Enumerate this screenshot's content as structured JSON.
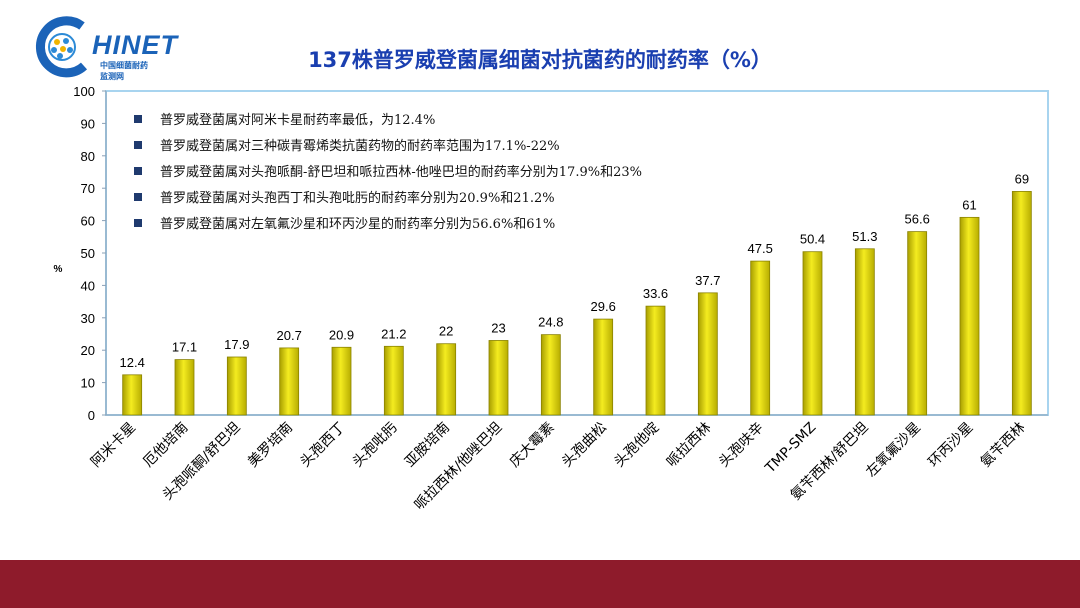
{
  "logo": {
    "word": "HINET",
    "sub1": "中国细菌耐药",
    "sub2": "监测网"
  },
  "chart_data": {
    "type": "bar",
    "title": "137株普罗威登菌属细菌对抗菌药的耐药率（%）",
    "ylabel": "%",
    "xlabel": "",
    "ylim": [
      0,
      100
    ],
    "yticks": [
      "0",
      "10",
      "20",
      "30",
      "40",
      "50",
      "60",
      "70",
      "80",
      "90",
      "100"
    ],
    "categories": [
      "阿米卡星",
      "厄他培南",
      "头孢哌酮/舒巴坦",
      "美罗培南",
      "头孢西丁",
      "头孢吡肟",
      "亚胺培南",
      "哌拉西林/他唑巴坦",
      "庆大霉素",
      "头孢曲松",
      "头孢他啶",
      "哌拉西林",
      "头孢呋辛",
      "TMP-SMZ",
      "氨苄西林/舒巴坦",
      "左氧氟沙星",
      "环丙沙星",
      "氨苄西林"
    ],
    "values": [
      12.4,
      17.1,
      17.9,
      20.7,
      20.9,
      21.2,
      22,
      23,
      24.8,
      29.6,
      33.6,
      37.7,
      47.5,
      50.4,
      51.3,
      56.6,
      61,
      69
    ],
    "value_labels": [
      "12.4",
      "17.1",
      "17.9",
      "20.7",
      "20.9",
      "21.2",
      "22",
      "23",
      "24.8",
      "29.6",
      "33.6",
      "37.7",
      "47.5",
      "50.4",
      "51.3",
      "56.6",
      "61",
      "69"
    ],
    "annotations": [
      "普罗威登菌属对阿米卡星耐药率最低，为12.4%",
      "普罗威登菌属对三种碳青霉烯类抗菌药物的耐药率范围为17.1%-22%",
      "普罗威登菌属对头孢哌酮-舒巴坦和哌拉西林-他唑巴坦的耐药率分别为17.9%和23%",
      "普罗威登菌属对头孢西丁和头孢吡肟的耐药率分别为20.9%和21.2%",
      "普罗威登菌属对左氧氟沙星和环丙沙星的耐药率分别为56.6%和61%"
    ],
    "grid": false,
    "colors": {
      "bar": "#e6dc00",
      "bar_edge": "#8a8200",
      "frame": "#a8d4ef",
      "title": "#1a3fb0",
      "bottom_bar": "#8e1b2b",
      "bullet": "#1f3a6e"
    }
  }
}
